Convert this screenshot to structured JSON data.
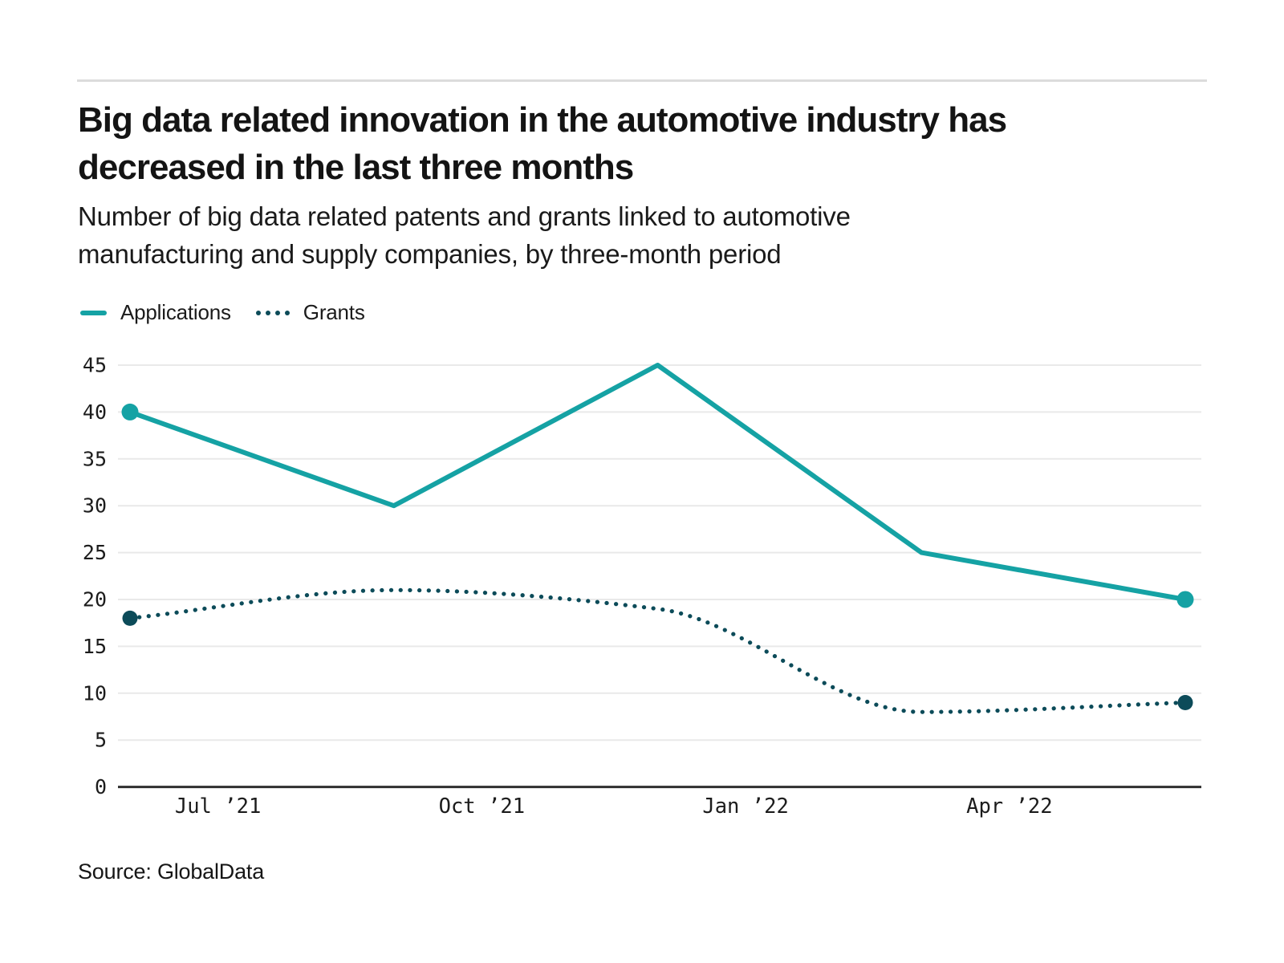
{
  "header": {
    "title_lines": [
      "Big data related innovation in the automotive industry has",
      "decreased in the last three months"
    ],
    "subtitle_lines": [
      "Number of big data related patents and grants linked to automotive",
      "manufacturing and supply companies, by three-month period"
    ]
  },
  "legend": {
    "applications_label": "Applications",
    "grants_label": "Grants"
  },
  "footer": {
    "source": "Source: GlobalData"
  },
  "colors": {
    "applications": "#15A2A4",
    "grants": "#0C4B59",
    "grid": "#E9E9E9",
    "axis": "#2F2F2F",
    "divider": "#DCDCDC",
    "tick_text": "#1C1C1C"
  },
  "chart_data": {
    "type": "line",
    "title": "Big data related innovation in the automotive industry has decreased in the last three months",
    "subtitle": "Number of big data related patents and grants linked to automotive manufacturing and supply companies, by three-month period",
    "xlabel": "",
    "ylabel": "",
    "ylim": [
      0,
      45
    ],
    "y_ticks": [
      0,
      5,
      10,
      15,
      20,
      25,
      30,
      35,
      40,
      45
    ],
    "x_tick_labels": [
      "Jul ’21",
      "Oct ’21",
      "Jan ’22",
      "Apr ’22"
    ],
    "grid": true,
    "legend_position": "top-left",
    "series": [
      {
        "name": "Applications",
        "style": "solid",
        "color": "#15A2A4",
        "values": [
          40,
          30,
          45,
          25,
          20
        ],
        "end_markers": true
      },
      {
        "name": "Grants",
        "style": "dotted",
        "color": "#0C4B59",
        "values": [
          18,
          21,
          19,
          8,
          9
        ],
        "end_markers": true
      }
    ]
  }
}
